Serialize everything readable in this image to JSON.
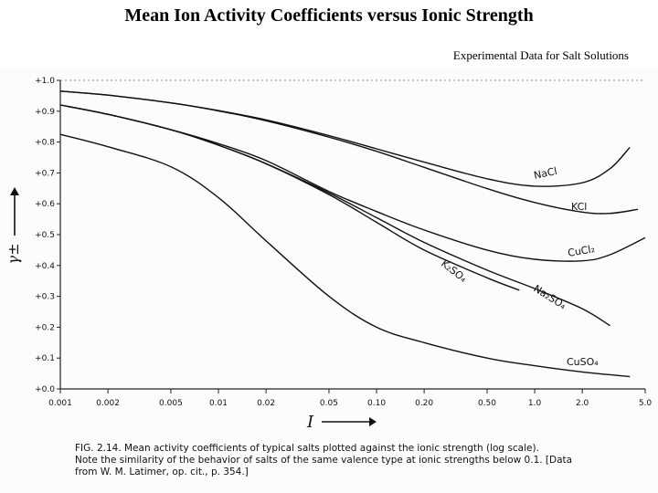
{
  "header": {
    "title": "Mean Ion Activity Coefficients versus Ionic Strength",
    "subtitle": "Experimental Data for Salt Solutions"
  },
  "chart_data": {
    "type": "line",
    "xscale": "log",
    "xlabel": "I",
    "ylabel": "γ±",
    "ylim": [
      0.0,
      1.0
    ],
    "x_ticks": [
      "0.001",
      "0.002",
      "0.005",
      "0.01",
      "0.02",
      "0.05",
      "0.10",
      "0.20",
      "0.50",
      "1.0",
      "2.0",
      "5.0"
    ],
    "x_tick_values": [
      0.001,
      0.002,
      0.005,
      0.01,
      0.02,
      0.05,
      0.1,
      0.2,
      0.5,
      1.0,
      2.0,
      5.0
    ],
    "y_ticks": [
      "+1.0",
      "+0.9",
      "+0.8",
      "+0.7",
      "+0.6",
      "+0.5",
      "+0.4",
      "+0.3",
      "+0.2",
      "+0.1",
      "+0.0"
    ],
    "y_tick_values": [
      1.0,
      0.9,
      0.8,
      0.7,
      0.6,
      0.5,
      0.4,
      0.3,
      0.2,
      0.1,
      0.0
    ],
    "series": [
      {
        "name": "NaCl",
        "label": "NaCl",
        "x": [
          0.001,
          0.002,
          0.005,
          0.01,
          0.02,
          0.05,
          0.1,
          0.2,
          0.5,
          1.0,
          2.0,
          3.0,
          4.0
        ],
        "y": [
          0.965,
          0.952,
          0.927,
          0.902,
          0.872,
          0.821,
          0.778,
          0.735,
          0.681,
          0.657,
          0.668,
          0.714,
          0.783
        ]
      },
      {
        "name": "KCl",
        "label": "KCl",
        "x": [
          0.001,
          0.002,
          0.005,
          0.01,
          0.02,
          0.05,
          0.1,
          0.2,
          0.5,
          1.0,
          2.0,
          3.0,
          4.5
        ],
        "y": [
          0.965,
          0.952,
          0.927,
          0.901,
          0.869,
          0.816,
          0.77,
          0.718,
          0.649,
          0.604,
          0.573,
          0.569,
          0.582
        ]
      },
      {
        "name": "CuCl2",
        "label": "CuCl₂",
        "x": [
          0.001,
          0.002,
          0.005,
          0.01,
          0.02,
          0.05,
          0.1,
          0.2,
          0.5,
          1.0,
          2.0,
          3.0,
          5.0
        ],
        "y": [
          0.92,
          0.89,
          0.84,
          0.795,
          0.74,
          0.64,
          0.575,
          0.515,
          0.45,
          0.42,
          0.415,
          0.435,
          0.49
        ]
      },
      {
        "name": "K2SO4",
        "label": "K₂SO₄",
        "x": [
          0.001,
          0.002,
          0.005,
          0.01,
          0.02,
          0.05,
          0.1,
          0.2,
          0.5,
          0.8
        ],
        "y": [
          0.92,
          0.89,
          0.84,
          0.79,
          0.73,
          0.63,
          0.54,
          0.45,
          0.36,
          0.32
        ]
      },
      {
        "name": "Na2SO4",
        "label": "Na₂SO₄",
        "x": [
          0.001,
          0.002,
          0.005,
          0.01,
          0.02,
          0.05,
          0.1,
          0.2,
          0.5,
          1.0,
          2.0,
          3.0
        ],
        "y": [
          0.92,
          0.89,
          0.84,
          0.79,
          0.73,
          0.635,
          0.555,
          0.475,
          0.385,
          0.325,
          0.26,
          0.205
        ]
      },
      {
        "name": "CuSO4",
        "label": "CuSO₄",
        "x": [
          0.001,
          0.002,
          0.005,
          0.01,
          0.02,
          0.05,
          0.1,
          0.2,
          0.5,
          1.0,
          2.0,
          4.0
        ],
        "y": [
          0.825,
          0.785,
          0.72,
          0.62,
          0.48,
          0.3,
          0.2,
          0.15,
          0.1,
          0.075,
          0.055,
          0.04
        ]
      }
    ]
  },
  "caption": {
    "line1": "FIG. 2.14.  Mean activity coefficients of typical salts plotted against the ionic strength (log scale).",
    "line2": "Note the similarity of the behavior of salts of the same valence type at ionic strengths below 0.1.   [Data",
    "line3": "from W. M. Latimer, op. cit., p. 354.]"
  },
  "style": {
    "line_color": "#111111",
    "axis_color": "#222222",
    "scan_bg": "#fcfcfa"
  }
}
